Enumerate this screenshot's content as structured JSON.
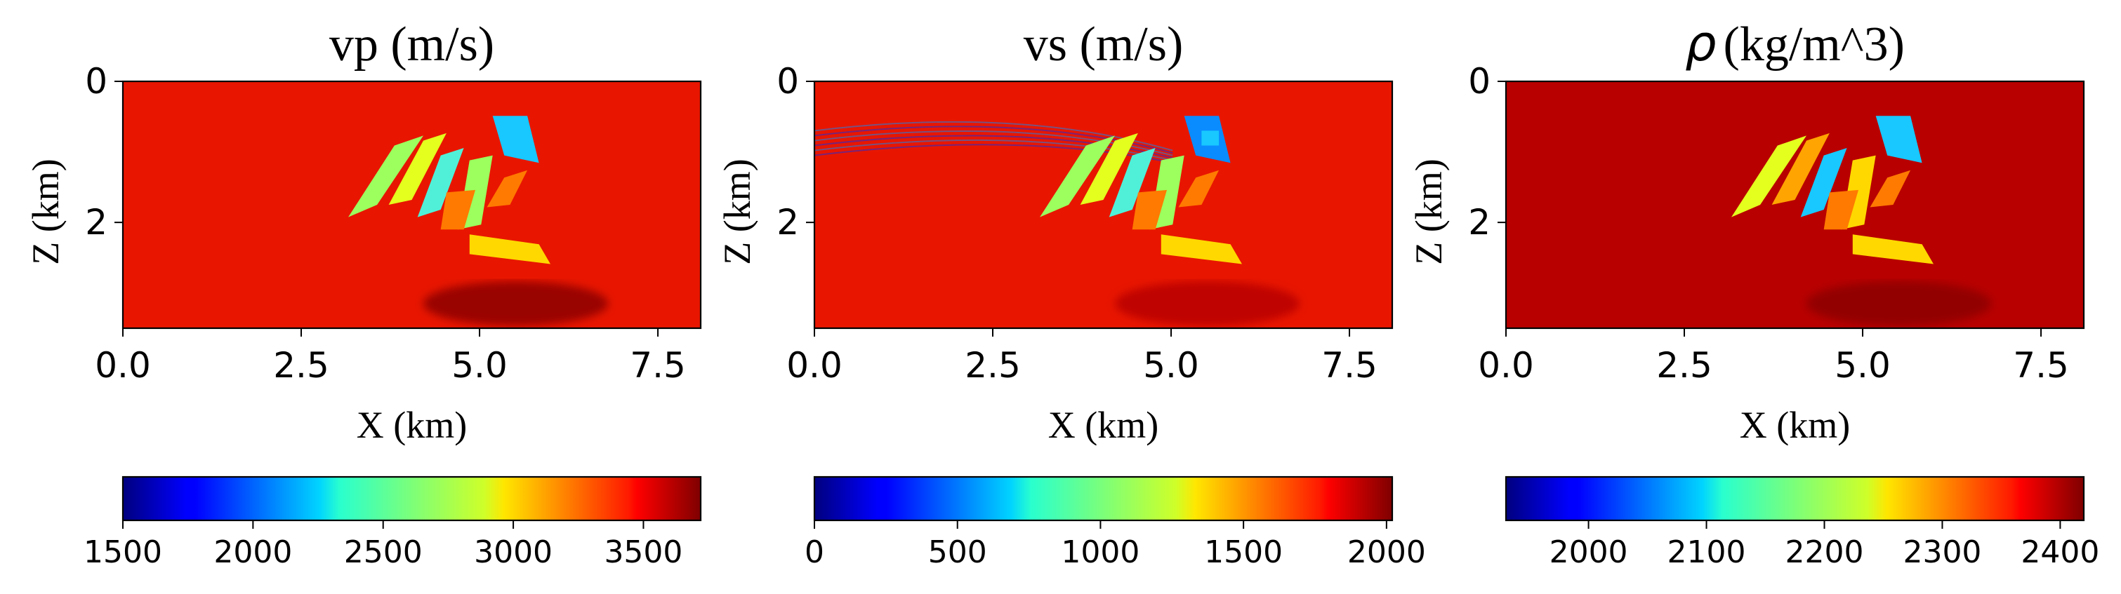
{
  "chart_data": [
    {
      "type": "heatmap",
      "title": "vp (m/s)",
      "xlabel": "X (km)",
      "ylabel": "Z (km)",
      "xlim": [
        0,
        8.1
      ],
      "ylim": [
        3.5,
        0
      ],
      "xticks": [
        0.0,
        2.5,
        5.0,
        7.5
      ],
      "xtick_labels": [
        "0.0",
        "2.5",
        "5.0",
        "7.5"
      ],
      "yticks": [
        0,
        2
      ],
      "ytick_labels": [
        "0",
        "2"
      ],
      "colormap": "jet",
      "colorbar": {
        "orientation": "horizontal",
        "range": [
          1500,
          3720
        ],
        "ticks": [
          1500,
          2000,
          2500,
          3000,
          3500
        ],
        "tick_labels": [
          "1500",
          "2000",
          "2500",
          "3000",
          "3500"
        ]
      }
    },
    {
      "type": "heatmap",
      "title": "vs (m/s)",
      "xlabel": "X (km)",
      "ylabel": "Z (km)",
      "xlim": [
        0,
        8.1
      ],
      "ylim": [
        3.5,
        0
      ],
      "xticks": [
        0.0,
        2.5,
        5.0,
        7.5
      ],
      "xtick_labels": [
        "0.0",
        "2.5",
        "5.0",
        "7.5"
      ],
      "yticks": [
        0,
        2
      ],
      "ytick_labels": [
        "0",
        "2"
      ],
      "colormap": "jet",
      "colorbar": {
        "orientation": "horizontal",
        "range": [
          0,
          2020
        ],
        "ticks": [
          0,
          500,
          1000,
          1500,
          2000
        ],
        "tick_labels": [
          "0",
          "500",
          "1000",
          "1500",
          "2000"
        ]
      }
    },
    {
      "type": "heatmap",
      "title_symbol": "ρ",
      "title": "(kg/m^3)",
      "xlabel": "X (km)",
      "ylabel": "Z (km)",
      "xlim": [
        0,
        8.1
      ],
      "ylim": [
        3.5,
        0
      ],
      "xticks": [
        0.0,
        2.5,
        5.0,
        7.5
      ],
      "xtick_labels": [
        "0.0",
        "2.5",
        "5.0",
        "7.5"
      ],
      "yticks": [
        0,
        2
      ],
      "ytick_labels": [
        "0",
        "2"
      ],
      "colormap": "jet",
      "colorbar": {
        "orientation": "horizontal",
        "range": [
          1930,
          2420
        ],
        "ticks": [
          2000,
          2100,
          2200,
          2300,
          2400
        ],
        "tick_labels": [
          "2000",
          "2100",
          "2200",
          "2300",
          "2400"
        ]
      }
    }
  ]
}
